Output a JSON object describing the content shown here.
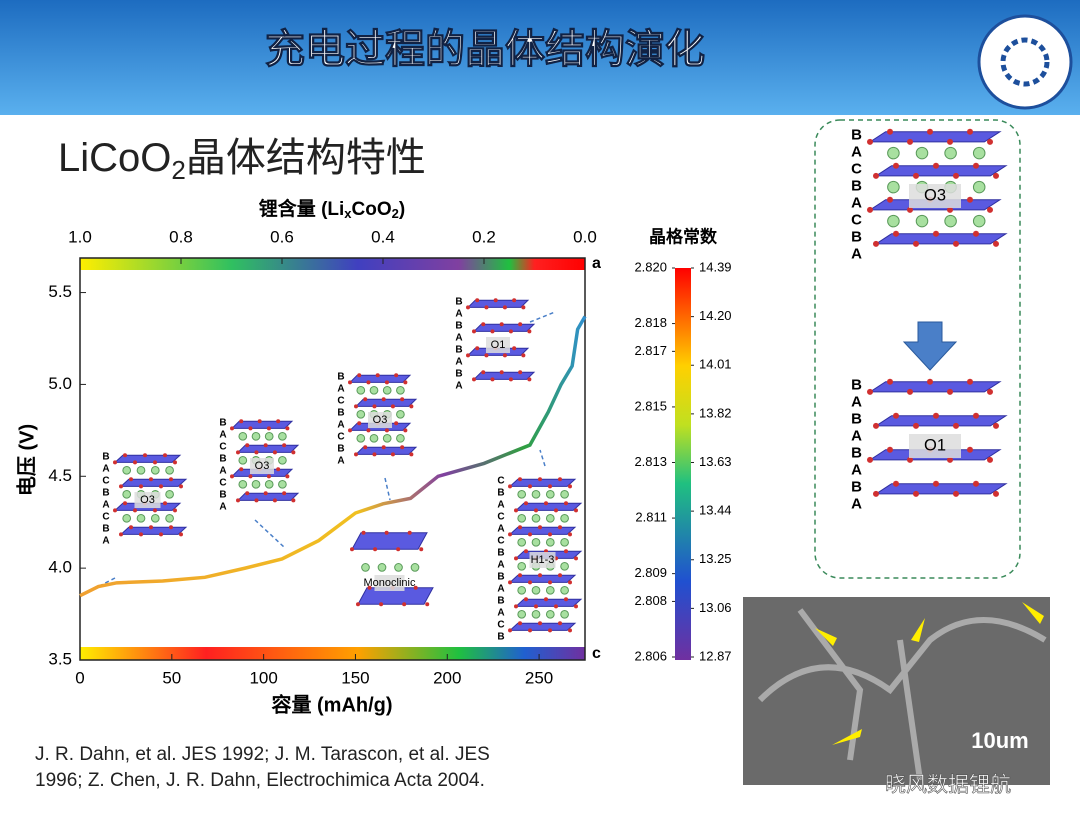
{
  "slide": {
    "title": "充电过程的晶体结构演化",
    "subtitle_parts": [
      "LiCoO",
      "2",
      "晶体结构特性"
    ],
    "reference_lines": [
      "J. R. Dahn, et al. JES 1992; J. M. Tarascon, et al. JES",
      "1996; Z. Chen, J. R. Dahn, Electrochimica Acta 2004."
    ],
    "watermark": "晓风数据锂航",
    "sem_scale": "10um",
    "panel": {
      "top": {
        "letters": [
          "B",
          "A",
          "C",
          "B",
          "A",
          "C",
          "B",
          "A"
        ],
        "label": "O3"
      },
      "bottom": {
        "letters": [
          "B",
          "A",
          "B",
          "A",
          "B",
          "A",
          "B",
          "A"
        ],
        "label": "O1"
      }
    },
    "insets": [
      {
        "label": "O3",
        "letters": [
          "B",
          "A",
          "C",
          "B",
          "A",
          "C",
          "B",
          "A"
        ]
      },
      {
        "label": "O3",
        "letters": [
          "B",
          "A",
          "C",
          "B",
          "A",
          "C",
          "B",
          "A"
        ]
      },
      {
        "label": "O3",
        "letters": [
          "B",
          "A",
          "C",
          "B",
          "A",
          "C",
          "B",
          "A"
        ]
      },
      {
        "label": "Monoclinic",
        "letters": []
      },
      {
        "label": "O1",
        "letters": [
          "B",
          "A",
          "B",
          "A",
          "B",
          "A",
          "B",
          "A"
        ]
      },
      {
        "label": "H1-3",
        "letters": [
          "C",
          "B",
          "A",
          "C",
          "A",
          "C",
          "B",
          "A",
          "B",
          "A",
          "B",
          "A",
          "C",
          "B"
        ]
      }
    ]
  },
  "chart_data": {
    "type": "line",
    "x_label": "容量 (mAh/g)",
    "y_label": "电压 (V)",
    "x2_label_parts": [
      "锂含量 (Li",
      "x",
      "CoO",
      "2",
      ")"
    ],
    "x": [
      0,
      10,
      20,
      45,
      68,
      90,
      110,
      130,
      150,
      165,
      180,
      195,
      220,
      245,
      255,
      262,
      268,
      271,
      275
    ],
    "series": [
      {
        "name": "voltage",
        "color": "#f0b020",
        "values": [
          3.85,
          3.9,
          3.92,
          3.93,
          3.95,
          4.0,
          4.05,
          4.15,
          4.3,
          4.35,
          4.38,
          4.5,
          4.57,
          4.67,
          4.85,
          5.0,
          5.1,
          5.3,
          5.37
        ]
      }
    ],
    "xlim": [
      0,
      275
    ],
    "xticks": [
      0,
      50,
      100,
      150,
      200,
      250
    ],
    "x2lim": [
      1,
      0
    ],
    "x2ticks": [
      {
        "value": 1,
        "label": "1.0"
      },
      0.8,
      0.6,
      0.4,
      0.2,
      {
        "value": 0,
        "label": "0.0"
      }
    ],
    "ylim": [
      3.5,
      5.65
    ],
    "yticks": [
      3.5,
      {
        "value": 4,
        "label": "4.0"
      },
      4.5,
      {
        "value": 5,
        "label": "5.0"
      },
      5.5
    ],
    "top_bar_label": "a",
    "bottom_bar_label": "c",
    "colorbar": {
      "title": "晶格常数",
      "alim": [
        2.806,
        2.82
      ],
      "aticks": [
        {
          "value": 2.82,
          "label": "2.820"
        },
        2.818,
        2.817,
        2.815,
        2.813,
        2.811,
        2.809,
        2.808,
        2.806
      ],
      "clim": [
        12.87,
        14.39
      ],
      "cticks": [
        14.39,
        {
          "value": 14.2,
          "label": "14.20"
        },
        14.01,
        13.82,
        13.63,
        13.44,
        13.25,
        13.06,
        12.87
      ]
    }
  }
}
